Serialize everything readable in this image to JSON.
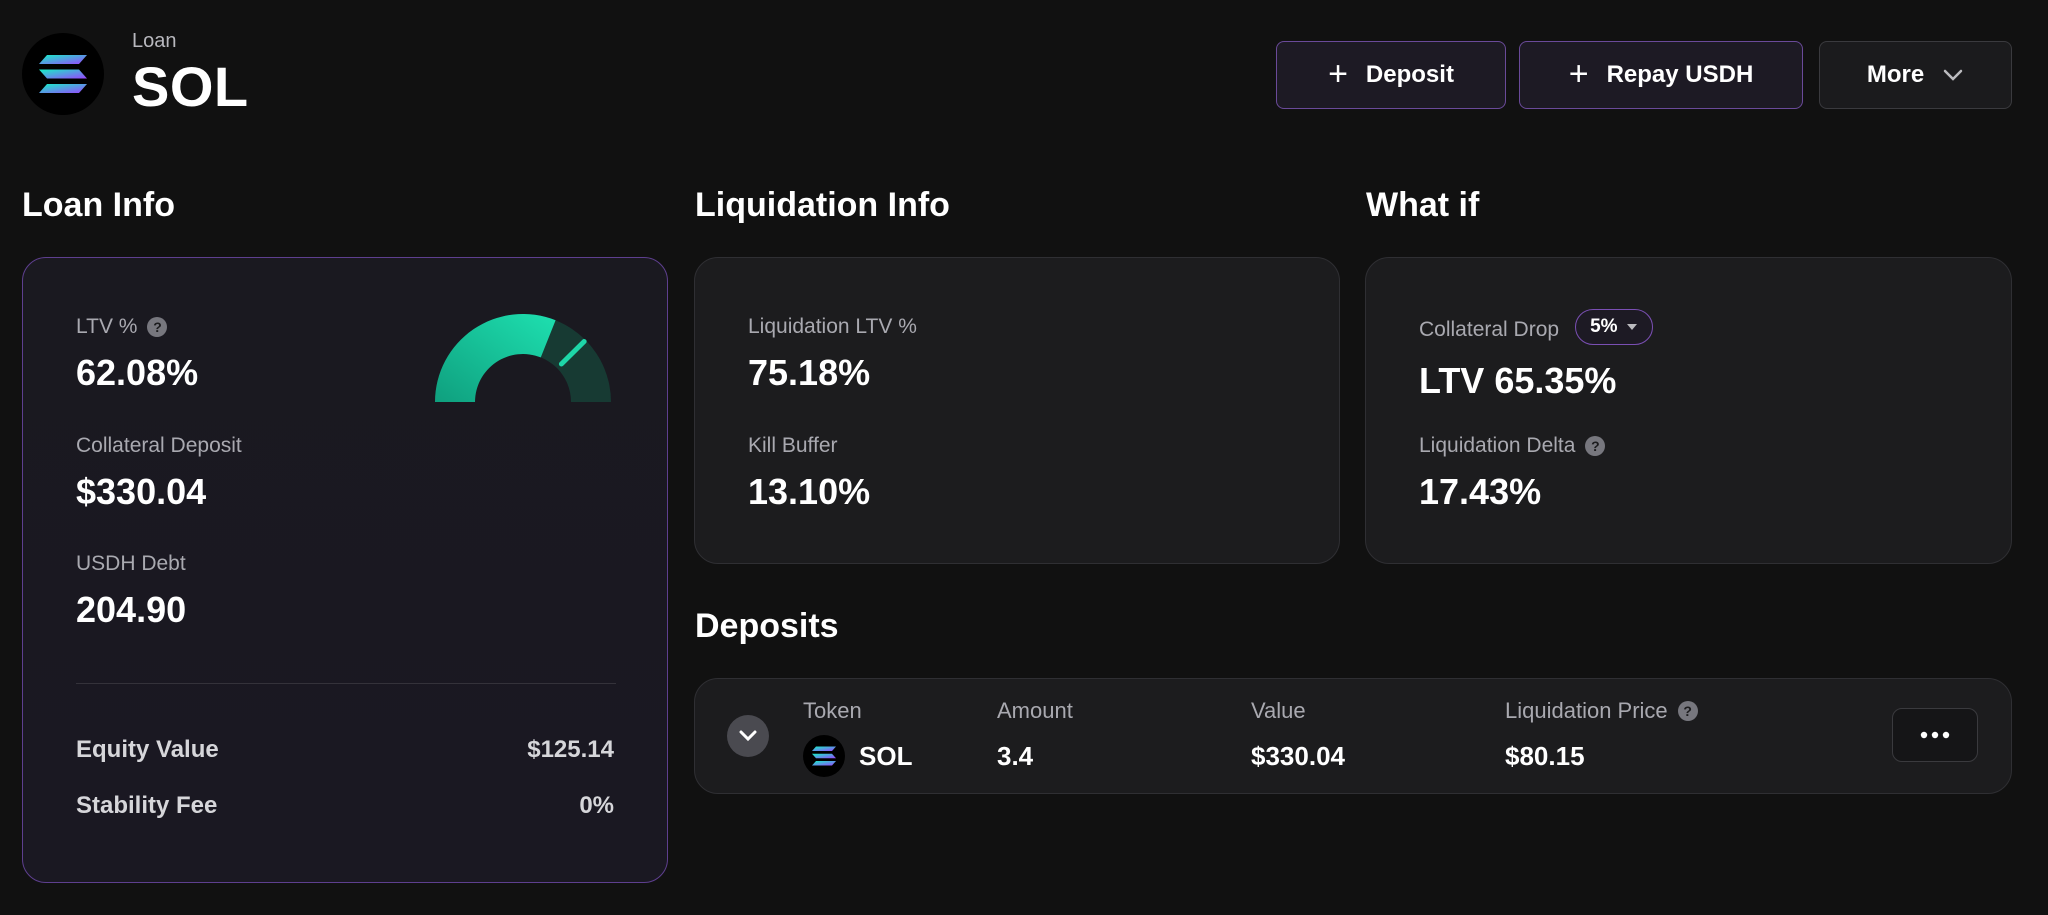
{
  "header": {
    "breadcrumb": "Loan",
    "title": "SOL",
    "deposit_label": "Deposit",
    "repay_label": "Repay USDH",
    "more_label": "More"
  },
  "loan_info": {
    "heading": "Loan Info",
    "ltv_label": "LTV %",
    "ltv_value": "62.08%",
    "ltv_gauge_fraction": 0.6208,
    "collateral_label": "Collateral Deposit",
    "collateral_value": "$330.04",
    "debt_label": "USDH Debt",
    "debt_value": "204.90",
    "equity_label": "Equity Value",
    "equity_value": "$125.14",
    "fee_label": "Stability Fee",
    "fee_value": "0%"
  },
  "liquidation_info": {
    "heading": "Liquidation Info",
    "ltv_label": "Liquidation LTV %",
    "ltv_value": "75.18%",
    "buffer_label": "Kill Buffer",
    "buffer_value": "13.10%"
  },
  "what_if": {
    "heading": "What if",
    "drop_label": "Collateral Drop",
    "drop_value": "5%",
    "ltv_value": "LTV 65.35%",
    "delta_label": "Liquidation Delta",
    "delta_value": "17.43%"
  },
  "deposits": {
    "heading": "Deposits",
    "columns": {
      "token": "Token",
      "amount": "Amount",
      "value": "Value",
      "liq_price": "Liquidation Price"
    },
    "row": {
      "token": "SOL",
      "amount": "3.4",
      "value": "$330.04",
      "liq_price": "$80.15"
    }
  },
  "colors": {
    "accent_purple": "#7a4fb3",
    "gauge_green": "#16c79a",
    "background": "#111111"
  }
}
